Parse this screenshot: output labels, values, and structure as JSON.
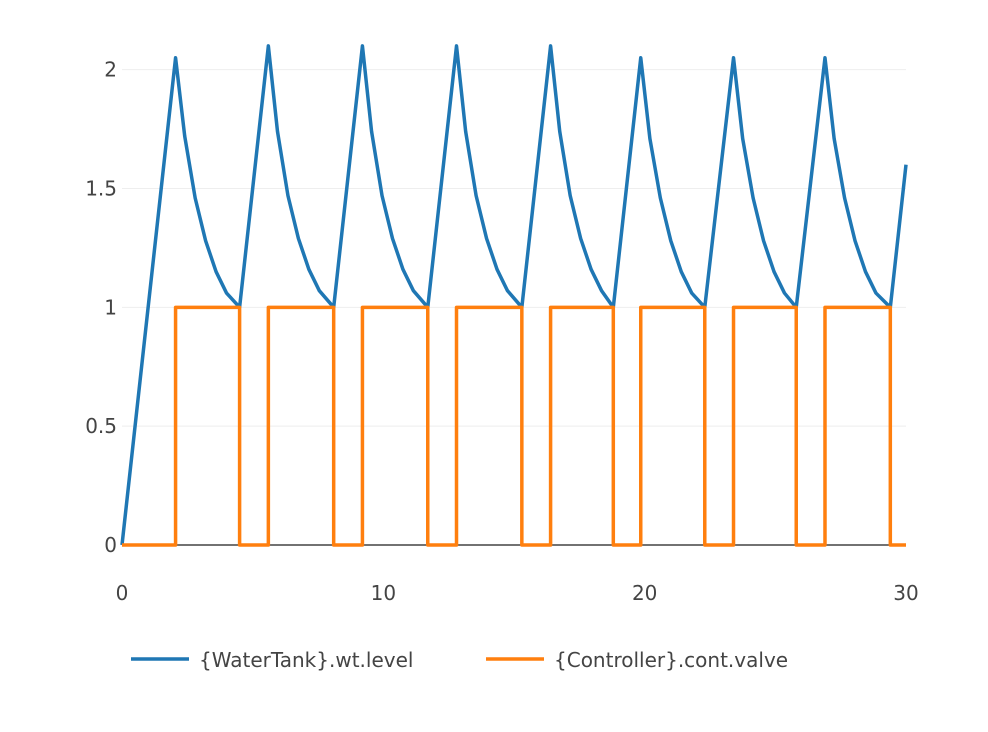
{
  "chart_data": {
    "type": "line",
    "title": "",
    "xlabel": "",
    "ylabel": "",
    "xlim": [
      0,
      30
    ],
    "ylim": [
      0,
      2.15
    ],
    "x_ticks": [
      0,
      10,
      20,
      30
    ],
    "x_tick_labels": [
      "0",
      "10",
      "20",
      "30"
    ],
    "y_ticks": [
      0,
      0.5,
      1,
      1.5,
      2
    ],
    "y_tick_labels": [
      "0",
      "0.5",
      "1",
      "1.5",
      "2"
    ],
    "grid": true,
    "legend_position": "bottom",
    "series": [
      {
        "name": "{WaterTank}.wt.level",
        "color": "#1f77b4",
        "x": [
          0,
          2.05,
          2.4,
          2.8,
          3.2,
          3.6,
          4.0,
          4.5,
          5.6,
          5.95,
          6.35,
          6.75,
          7.15,
          7.55,
          8.1,
          9.2,
          9.55,
          9.95,
          10.35,
          10.75,
          11.15,
          11.7,
          12.8,
          13.15,
          13.55,
          13.95,
          14.35,
          14.75,
          15.3,
          16.4,
          16.75,
          17.15,
          17.55,
          17.95,
          18.35,
          18.8,
          19.85,
          20.2,
          20.6,
          21.0,
          21.4,
          21.8,
          22.3,
          23.4,
          23.75,
          24.15,
          24.55,
          24.95,
          25.35,
          25.8,
          26.9,
          27.25,
          27.65,
          28.05,
          28.45,
          28.85,
          29.4,
          30
        ],
        "y": [
          0,
          2.05,
          1.72,
          1.46,
          1.28,
          1.15,
          1.06,
          1.0,
          2.1,
          1.74,
          1.47,
          1.29,
          1.16,
          1.07,
          1.0,
          2.1,
          1.74,
          1.47,
          1.29,
          1.16,
          1.07,
          1.0,
          2.1,
          1.74,
          1.47,
          1.29,
          1.16,
          1.07,
          1.0,
          2.1,
          1.74,
          1.47,
          1.29,
          1.16,
          1.07,
          1.0,
          2.05,
          1.71,
          1.46,
          1.28,
          1.15,
          1.06,
          1.0,
          2.05,
          1.71,
          1.46,
          1.28,
          1.15,
          1.06,
          1.0,
          2.05,
          1.71,
          1.46,
          1.28,
          1.15,
          1.06,
          1.0,
          1.6
        ]
      },
      {
        "name": "{Controller}.cont.valve",
        "color": "#ff7f0e",
        "x": [
          0,
          2.05,
          2.05,
          4.5,
          4.5,
          5.6,
          5.6,
          8.1,
          8.1,
          9.2,
          9.2,
          11.7,
          11.7,
          12.8,
          12.8,
          15.3,
          15.3,
          16.4,
          16.4,
          18.8,
          18.8,
          19.85,
          19.85,
          22.3,
          22.3,
          23.4,
          23.4,
          25.8,
          25.8,
          26.9,
          26.9,
          29.4,
          29.4,
          30
        ],
        "y": [
          0,
          0,
          1,
          1,
          0,
          0,
          1,
          1,
          0,
          0,
          1,
          1,
          0,
          0,
          1,
          1,
          0,
          0,
          1,
          1,
          0,
          0,
          1,
          1,
          0,
          0,
          1,
          1,
          0,
          0,
          1,
          1,
          0,
          0
        ]
      }
    ]
  }
}
